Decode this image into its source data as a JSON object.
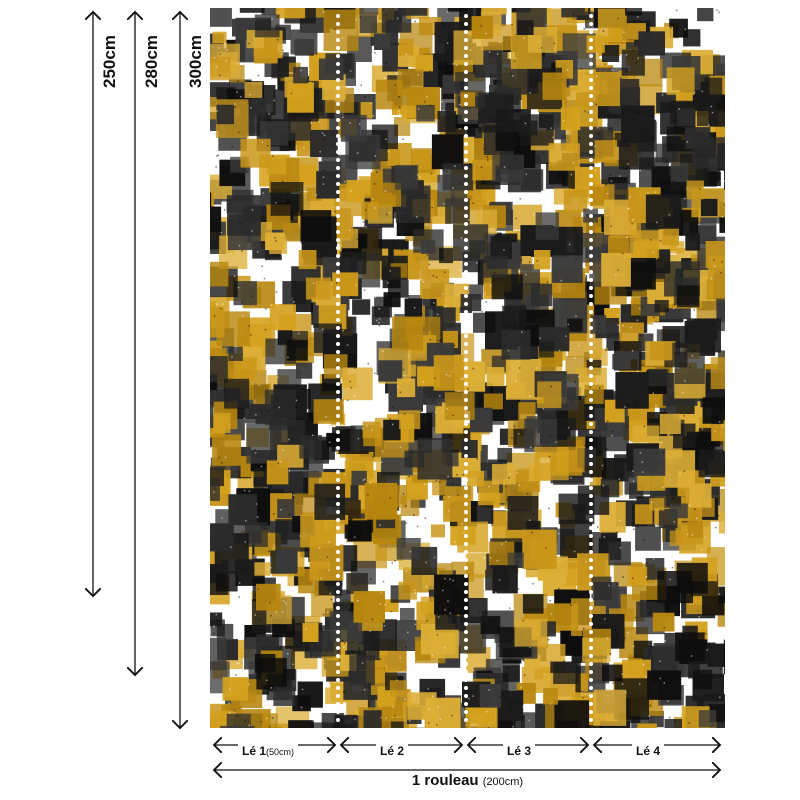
{
  "heights": [
    {
      "label": "250cm",
      "value_cm": 250
    },
    {
      "label": "280cm",
      "value_cm": 280
    },
    {
      "label": "300cm",
      "value_cm": 300
    }
  ],
  "strips": [
    {
      "label": "Lé 1",
      "note": "(50cm)"
    },
    {
      "label": "Lé 2",
      "note": ""
    },
    {
      "label": "Lé 3",
      "note": ""
    },
    {
      "label": "Lé 4",
      "note": ""
    }
  ],
  "roll": {
    "label": "1 rouleau",
    "note": "(200cm)"
  },
  "colors": {
    "mustard": "#d4a11e",
    "black": "#111111",
    "paper": "#ffffff"
  }
}
